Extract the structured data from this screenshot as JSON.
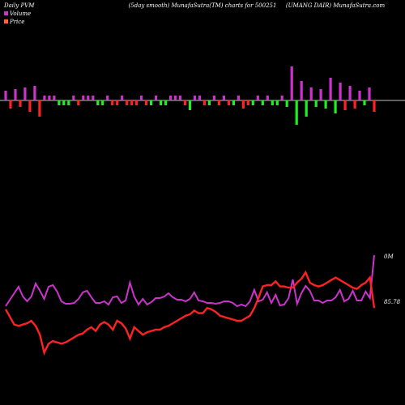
{
  "header": {
    "left": "Daily PVM",
    "center": "(5day smooth) MunafaSutra(TM) charts for 500251",
    "right": "(UMANG DAIR) MunafaSutra.com"
  },
  "legend": {
    "volume_label": "Volume",
    "price_label": "Price",
    "volume_color": "#cc33cc",
    "price_color": "#ff3333"
  },
  "colors": {
    "background": "#000000",
    "baseline": "#ffffff",
    "bar_up": "#cc33cc",
    "bar_down": "#ff2222",
    "bar_green": "#22ee22"
  },
  "chart_data": {
    "type": "line",
    "series": [
      {
        "name": "Volume",
        "color": "#cc33cc",
        "values": [
          378,
          370,
          362,
          354,
          366,
          372,
          366,
          350,
          359,
          369,
          354,
          352,
          360,
          372,
          375,
          375,
          374,
          369,
          361,
          359,
          367,
          374,
          374,
          372,
          376,
          367,
          366,
          374,
          371,
          349,
          366,
          376,
          369,
          376,
          373,
          368,
          368,
          366,
          362,
          367,
          370,
          370,
          372,
          369,
          361,
          371,
          372,
          374,
          374,
          375,
          374,
          372,
          372,
          374,
          378,
          376,
          378,
          372,
          358,
          372,
          370,
          361,
          374,
          364,
          377,
          376,
          368,
          345,
          375,
          362,
          353,
          359,
          371,
          371,
          374,
          371,
          371,
          367,
          358,
          372,
          369,
          359,
          371,
          371,
          360,
          368,
          315
        ]
      },
      {
        "name": "Price",
        "color": "#ff3333",
        "values": [
          85.7,
          85.1,
          84.5,
          84.4,
          84.5,
          84.6,
          84.8,
          84.4,
          83.7,
          82.3,
          83.0,
          83.2,
          83.1,
          83.0,
          83.1,
          83.3,
          83.5,
          83.7,
          83.8,
          84.1,
          84.3,
          84.0,
          84.5,
          84.7,
          84.5,
          84.1,
          84.8,
          84.6,
          84.2,
          83.4,
          84.3,
          84.0,
          83.7,
          83.9,
          84.0,
          84.1,
          84.1,
          84.3,
          84.4,
          84.6,
          84.8,
          85.0,
          85.2,
          85.3,
          85.6,
          85.4,
          85.4,
          85.8,
          85.7,
          85.5,
          85.2,
          85.1,
          85.0,
          84.9,
          84.8,
          84.8,
          85.0,
          85.2,
          85.8,
          86.6,
          87.5,
          87.6,
          87.6,
          87.9,
          87.5,
          87.5,
          87.4,
          87.4,
          87.8,
          88.1,
          88.6,
          87.8,
          87.6,
          87.5,
          87.6,
          87.8,
          88.0,
          88.2,
          88.0,
          87.8,
          87.6,
          87.4,
          87.3,
          87.6,
          87.8,
          88.2,
          85.8
        ]
      }
    ],
    "volume_histogram": [
      {
        "v": 12,
        "c": "up"
      },
      {
        "v": -10,
        "c": "down"
      },
      {
        "v": 14,
        "c": "up"
      },
      {
        "v": -8,
        "c": "down"
      },
      {
        "v": 16,
        "c": "up"
      },
      {
        "v": -14,
        "c": "down"
      },
      {
        "v": 18,
        "c": "up"
      },
      {
        "v": -20,
        "c": "down"
      },
      {
        "v": 6,
        "c": "up"
      },
      {
        "v": 6,
        "c": "up"
      },
      {
        "v": 6,
        "c": "up"
      },
      {
        "v": -6,
        "c": "green"
      },
      {
        "v": -6,
        "c": "green"
      },
      {
        "v": -6,
        "c": "green"
      },
      {
        "v": 6,
        "c": "up"
      },
      {
        "v": -6,
        "c": "down"
      },
      {
        "v": 6,
        "c": "up"
      },
      {
        "v": 6,
        "c": "up"
      },
      {
        "v": 6,
        "c": "up"
      },
      {
        "v": -6,
        "c": "green"
      },
      {
        "v": -6,
        "c": "green"
      },
      {
        "v": 6,
        "c": "up"
      },
      {
        "v": -6,
        "c": "down"
      },
      {
        "v": -6,
        "c": "down"
      },
      {
        "v": 6,
        "c": "up"
      },
      {
        "v": -6,
        "c": "down"
      },
      {
        "v": -6,
        "c": "down"
      },
      {
        "v": -6,
        "c": "down"
      },
      {
        "v": 6,
        "c": "up"
      },
      {
        "v": -6,
        "c": "down"
      },
      {
        "v": -6,
        "c": "green"
      },
      {
        "v": 6,
        "c": "up"
      },
      {
        "v": -6,
        "c": "green"
      },
      {
        "v": -6,
        "c": "green"
      },
      {
        "v": 6,
        "c": "up"
      },
      {
        "v": 6,
        "c": "up"
      },
      {
        "v": 6,
        "c": "up"
      },
      {
        "v": -6,
        "c": "down"
      },
      {
        "v": -12,
        "c": "green"
      },
      {
        "v": 6,
        "c": "up"
      },
      {
        "v": 6,
        "c": "up"
      },
      {
        "v": -6,
        "c": "down"
      },
      {
        "v": -6,
        "c": "green"
      },
      {
        "v": 6,
        "c": "up"
      },
      {
        "v": -6,
        "c": "down"
      },
      {
        "v": 6,
        "c": "up"
      },
      {
        "v": -6,
        "c": "down"
      },
      {
        "v": -6,
        "c": "green"
      },
      {
        "v": 6,
        "c": "up"
      },
      {
        "v": -10,
        "c": "down"
      },
      {
        "v": -6,
        "c": "down"
      },
      {
        "v": -6,
        "c": "green"
      },
      {
        "v": 6,
        "c": "up"
      },
      {
        "v": -6,
        "c": "green"
      },
      {
        "v": 6,
        "c": "up"
      },
      {
        "v": -6,
        "c": "green"
      },
      {
        "v": -6,
        "c": "green"
      },
      {
        "v": 6,
        "c": "up"
      },
      {
        "v": -8,
        "c": "green"
      },
      {
        "v": 42,
        "c": "up"
      },
      {
        "v": -30,
        "c": "green"
      },
      {
        "v": 24,
        "c": "up"
      },
      {
        "v": -20,
        "c": "green"
      },
      {
        "v": 16,
        "c": "up"
      },
      {
        "v": -8,
        "c": "green"
      },
      {
        "v": 14,
        "c": "up"
      },
      {
        "v": -10,
        "c": "green"
      },
      {
        "v": 28,
        "c": "up"
      },
      {
        "v": -16,
        "c": "green"
      },
      {
        "v": 22,
        "c": "up"
      },
      {
        "v": -12,
        "c": "down"
      },
      {
        "v": 18,
        "c": "up"
      },
      {
        "v": -10,
        "c": "down"
      },
      {
        "v": 12,
        "c": "up"
      },
      {
        "v": -6,
        "c": "green"
      },
      {
        "v": 16,
        "c": "up"
      },
      {
        "v": -14,
        "c": "down"
      }
    ],
    "value_labels": {
      "volume_last": "0M",
      "price_last": "85.78"
    },
    "title": "",
    "xlabel": "",
    "ylabel": ""
  }
}
